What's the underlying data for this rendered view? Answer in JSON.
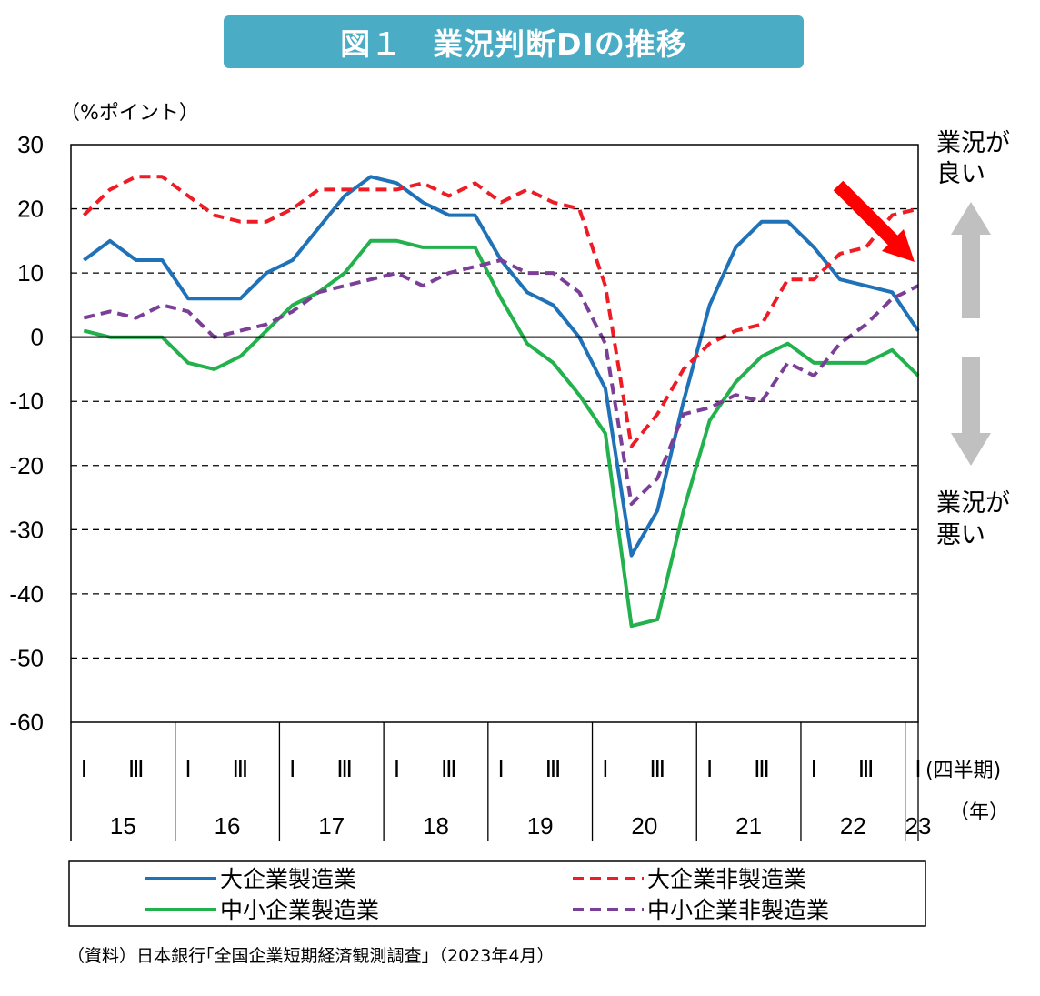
{
  "title": "図１　業況判断DIの推移",
  "source": "（資料）日本銀行｢全国企業短期経済観測調査｣（2023年4月）",
  "annotations": {
    "good": [
      "業況が",
      "良い"
    ],
    "bad": [
      "業況が",
      "悪い"
    ],
    "quarter_unit": "(四半期)",
    "year_unit": "（年）"
  },
  "chart_data": {
    "type": "line",
    "title": "図１　業況判断DIの推移",
    "ylabel": "（%ポイント）",
    "ylim": [
      -60,
      30
    ],
    "yticks": [
      30,
      20,
      10,
      0,
      -10,
      -20,
      -30,
      -40,
      -50,
      -60
    ],
    "grid": "dashed horizontal",
    "legend_position": "bottom",
    "x": [
      "15 I",
      "15 II",
      "15 III",
      "15 IV",
      "16 I",
      "16 II",
      "16 III",
      "16 IV",
      "17 I",
      "17 II",
      "17 III",
      "17 IV",
      "18 I",
      "18 II",
      "18 III",
      "18 IV",
      "19 I",
      "19 II",
      "19 III",
      "19 IV",
      "20 I",
      "20 II",
      "20 III",
      "20 IV",
      "21 I",
      "21 II",
      "21 III",
      "21 IV",
      "22 I",
      "22 II",
      "22 III",
      "22 IV",
      "23 I"
    ],
    "quarter_labels": [
      "I",
      "Ⅲ"
    ],
    "years": [
      "15",
      "16",
      "17",
      "18",
      "19",
      "20",
      "21",
      "22",
      "23"
    ],
    "series": [
      {
        "name": "大企業製造業",
        "color": "#1f72b8",
        "dash": "solid",
        "values": [
          12,
          15,
          12,
          12,
          6,
          6,
          6,
          10,
          12,
          17,
          22,
          25,
          24,
          21,
          19,
          19,
          12,
          7,
          5,
          0,
          -8,
          -34,
          -27,
          -10,
          5,
          14,
          18,
          18,
          14,
          9,
          8,
          7,
          1
        ]
      },
      {
        "name": "大企業非製造業",
        "color": "#ee1c25",
        "dash": "dashed",
        "values": [
          19,
          23,
          25,
          25,
          22,
          19,
          18,
          18,
          20,
          23,
          23,
          23,
          23,
          24,
          22,
          24,
          21,
          23,
          21,
          20,
          8,
          -17,
          -12,
          -5,
          -1,
          1,
          2,
          9,
          9,
          13,
          14,
          19,
          20
        ]
      },
      {
        "name": "中小企業製造業",
        "color": "#22b14c",
        "dash": "solid",
        "values": [
          1,
          0,
          0,
          0,
          -4,
          -5,
          -3,
          1,
          5,
          7,
          10,
          15,
          15,
          14,
          14,
          14,
          6,
          -1,
          -4,
          -9,
          -15,
          -45,
          -44,
          -27,
          -13,
          -7,
          -3,
          -1,
          -4,
          -4,
          -4,
          -2,
          -6
        ]
      },
      {
        "name": "中小企業非製造業",
        "color": "#7b3f98",
        "dash": "dashed",
        "values": [
          3,
          4,
          3,
          5,
          4,
          0,
          1,
          2,
          4,
          7,
          8,
          9,
          10,
          8,
          10,
          11,
          12,
          10,
          10,
          7,
          -1,
          -26,
          -22,
          -12,
          -11,
          -9,
          -10,
          -4,
          -6,
          -1,
          2,
          6,
          8
        ]
      }
    ]
  }
}
